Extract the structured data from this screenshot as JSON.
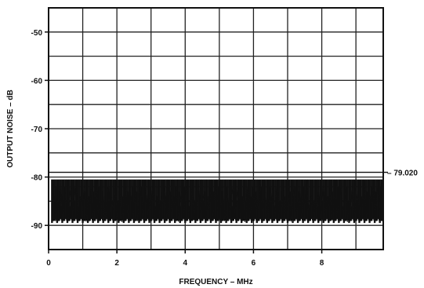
{
  "chart_data": {
    "type": "line",
    "title": "",
    "xlabel": "FREQUENCY – MHz",
    "ylabel": "OUTPUT NOISE – dB",
    "xlim": [
      0,
      9.8
    ],
    "ylim": [
      -95,
      -45
    ],
    "x_ticks": [
      0,
      2,
      4,
      6,
      8
    ],
    "x_tick_labels": [
      "0",
      "2",
      "4",
      "6",
      "8"
    ],
    "y_ticks": [
      -50,
      -60,
      -70,
      -80,
      -90
    ],
    "y_tick_labels": [
      "-50",
      "-60",
      "-70",
      "-80",
      "-90"
    ],
    "grid": true,
    "legend": "none",
    "series": [
      {
        "noise_floor_db": -85,
        "spur_top_db": -80.5,
        "spur_bottom_db": -89.5,
        "x_start_mhz": 0.1,
        "x_end_mhz": 9.75,
        "points": [
          [
            0.1,
            -85.2
          ],
          [
            0.15,
            -81.6
          ],
          [
            0.2,
            -89.1
          ],
          [
            0.25,
            -84.3
          ],
          [
            0.3,
            -86.8
          ],
          [
            0.35,
            -81.0
          ],
          [
            0.4,
            -88.6
          ],
          [
            0.45,
            -85.9
          ],
          [
            0.5,
            -83.2
          ],
          [
            0.55,
            -89.4
          ],
          [
            0.6,
            -84.7
          ],
          [
            0.65,
            -82.1
          ],
          [
            0.7,
            -87.5
          ],
          [
            0.75,
            -85.0
          ],
          [
            0.8,
            -80.9
          ],
          [
            0.85,
            -88.9
          ],
          [
            0.9,
            -85.6
          ],
          [
            0.95,
            -83.8
          ],
          [
            1.0,
            -86.9
          ],
          [
            1.05,
            -81.8
          ],
          [
            1.1,
            -89.2
          ],
          [
            1.15,
            -84.5
          ],
          [
            1.2,
            -86.1
          ],
          [
            1.25,
            -82.6
          ],
          [
            1.3,
            -88.3
          ],
          [
            1.35,
            -85.4
          ],
          [
            1.4,
            -81.3
          ],
          [
            1.45,
            -87.9
          ],
          [
            1.5,
            -84.9
          ],
          [
            1.55,
            -86.4
          ],
          [
            1.6,
            -82.9
          ],
          [
            1.65,
            -89.0
          ],
          [
            1.7,
            -85.7
          ],
          [
            1.75,
            -81.1
          ],
          [
            1.8,
            -87.2
          ],
          [
            1.85,
            -84.2
          ],
          [
            1.9,
            -86.6
          ],
          [
            1.95,
            -82.4
          ],
          [
            2.0,
            -88.8
          ],
          [
            2.05,
            -85.3
          ],
          [
            2.1,
            -83.5
          ],
          [
            2.15,
            -89.3
          ],
          [
            2.2,
            -84.8
          ],
          [
            2.25,
            -81.5
          ],
          [
            2.3,
            -87.7
          ],
          [
            2.35,
            -85.1
          ],
          [
            2.4,
            -82.2
          ],
          [
            2.45,
            -88.5
          ],
          [
            2.5,
            -86.0
          ],
          [
            2.55,
            -83.1
          ],
          [
            2.6,
            -89.1
          ],
          [
            2.65,
            -84.6
          ],
          [
            2.7,
            -81.9
          ],
          [
            2.75,
            -87.4
          ],
          [
            2.8,
            -85.8
          ],
          [
            2.85,
            -82.7
          ],
          [
            2.9,
            -88.1
          ],
          [
            2.95,
            -84.4
          ],
          [
            3.0,
            -86.7
          ],
          [
            3.05,
            -81.4
          ],
          [
            3.1,
            -89.0
          ],
          [
            3.15,
            -85.5
          ],
          [
            3.2,
            -83.4
          ],
          [
            3.25,
            -87.8
          ],
          [
            3.3,
            -84.1
          ],
          [
            3.35,
            -86.3
          ],
          [
            3.4,
            -82.0
          ],
          [
            3.45,
            -88.7
          ],
          [
            3.5,
            -85.2
          ],
          [
            3.55,
            -81.7
          ],
          [
            3.6,
            -87.1
          ],
          [
            3.65,
            -84.9
          ],
          [
            3.7,
            -86.5
          ],
          [
            3.75,
            -82.8
          ],
          [
            3.8,
            -89.2
          ],
          [
            3.85,
            -85.6
          ],
          [
            3.9,
            -83.0
          ],
          [
            3.95,
            -88.2
          ],
          [
            4.0,
            -84.3
          ],
          [
            4.05,
            -81.2
          ],
          [
            4.1,
            -87.6
          ],
          [
            4.15,
            -85.9
          ],
          [
            4.2,
            -82.5
          ],
          [
            4.25,
            -88.9
          ],
          [
            4.3,
            -84.7
          ],
          [
            4.35,
            -86.2
          ],
          [
            4.4,
            -81.6
          ],
          [
            4.45,
            -87.3
          ],
          [
            4.5,
            -85.1
          ],
          [
            4.55,
            -83.3
          ],
          [
            4.6,
            -89.4
          ],
          [
            4.65,
            -84.5
          ],
          [
            4.7,
            -86.8
          ],
          [
            4.75,
            -82.3
          ],
          [
            4.8,
            -88.4
          ],
          [
            4.85,
            -85.3
          ],
          [
            4.9,
            -81.0
          ],
          [
            4.95,
            -87.0
          ],
          [
            5.0,
            -84.8
          ],
          [
            5.05,
            -86.4
          ],
          [
            5.1,
            -82.9
          ],
          [
            5.15,
            -89.1
          ],
          [
            5.2,
            -85.7
          ],
          [
            5.25,
            -83.6
          ],
          [
            5.3,
            -88.0
          ],
          [
            5.35,
            -84.2
          ],
          [
            5.4,
            -81.8
          ],
          [
            5.45,
            -87.5
          ],
          [
            5.5,
            -85.0
          ],
          [
            5.55,
            -82.1
          ],
          [
            5.6,
            -88.6
          ],
          [
            5.65,
            -86.1
          ],
          [
            5.7,
            -83.9
          ],
          [
            5.75,
            -89.3
          ],
          [
            5.8,
            -84.6
          ],
          [
            5.85,
            -81.3
          ],
          [
            5.9,
            -87.9
          ],
          [
            5.95,
            -85.4
          ],
          [
            6.0,
            -82.6
          ],
          [
            6.05,
            -88.3
          ],
          [
            6.1,
            -84.0
          ],
          [
            6.15,
            -86.9
          ],
          [
            6.2,
            -81.5
          ],
          [
            6.25,
            -87.2
          ],
          [
            6.3,
            -85.8
          ],
          [
            6.35,
            -83.2
          ],
          [
            6.4,
            -89.0
          ],
          [
            6.45,
            -84.4
          ],
          [
            6.5,
            -86.6
          ],
          [
            6.55,
            -82.4
          ],
          [
            6.6,
            -88.8
          ],
          [
            6.65,
            -85.2
          ],
          [
            6.7,
            -81.1
          ],
          [
            6.75,
            -87.7
          ],
          [
            6.8,
            -84.9
          ],
          [
            6.85,
            -86.3
          ],
          [
            6.9,
            -82.8
          ],
          [
            6.95,
            -88.1
          ],
          [
            7.0,
            -85.5
          ],
          [
            7.05,
            -83.7
          ],
          [
            7.1,
            -89.2
          ],
          [
            7.15,
            -84.3
          ],
          [
            7.2,
            -81.9
          ],
          [
            7.25,
            -87.4
          ],
          [
            7.3,
            -85.9
          ],
          [
            7.35,
            -82.2
          ],
          [
            7.4,
            -88.5
          ],
          [
            7.45,
            -84.7
          ],
          [
            7.5,
            -86.0
          ],
          [
            7.55,
            -81.4
          ],
          [
            7.6,
            -87.0
          ],
          [
            7.65,
            -85.3
          ],
          [
            7.7,
            -83.0
          ],
          [
            7.75,
            -89.1
          ],
          [
            7.8,
            -84.5
          ],
          [
            7.85,
            -86.7
          ],
          [
            7.9,
            -82.0
          ],
          [
            7.95,
            -88.7
          ],
          [
            8.0,
            -85.6
          ],
          [
            8.05,
            -81.7
          ],
          [
            8.1,
            -87.6
          ],
          [
            8.15,
            -84.1
          ],
          [
            8.2,
            -86.2
          ],
          [
            8.25,
            -82.7
          ],
          [
            8.3,
            -88.9
          ],
          [
            8.35,
            -85.1
          ],
          [
            8.4,
            -83.4
          ],
          [
            8.45,
            -87.9
          ],
          [
            8.5,
            -84.8
          ],
          [
            8.55,
            -81.2
          ],
          [
            8.6,
            -87.3
          ],
          [
            8.65,
            -85.8
          ],
          [
            8.7,
            -82.5
          ],
          [
            8.75,
            -89.3
          ],
          [
            8.8,
            -84.2
          ],
          [
            8.85,
            -86.5
          ],
          [
            8.9,
            -81.9
          ],
          [
            8.95,
            -88.2
          ],
          [
            9.0,
            -85.4
          ],
          [
            9.05,
            -83.1
          ],
          [
            9.1,
            -87.8
          ],
          [
            9.15,
            -84.6
          ],
          [
            9.2,
            -86.1
          ],
          [
            9.25,
            -80.8
          ],
          [
            9.3,
            -89.0
          ],
          [
            9.35,
            -85.0
          ],
          [
            9.4,
            -82.3
          ],
          [
            9.45,
            -87.5
          ],
          [
            9.5,
            -80.6
          ],
          [
            9.55,
            -88.4
          ],
          [
            9.6,
            -84.0
          ],
          [
            9.65,
            -81.0
          ],
          [
            9.7,
            -86.8
          ],
          [
            9.75,
            -80.5
          ]
        ]
      }
    ],
    "reference_line": {
      "y": -79.02,
      "label": "– 79.020"
    },
    "colors": {
      "trace": "#111111",
      "grid": "#222222",
      "background": "#ffffff"
    }
  }
}
